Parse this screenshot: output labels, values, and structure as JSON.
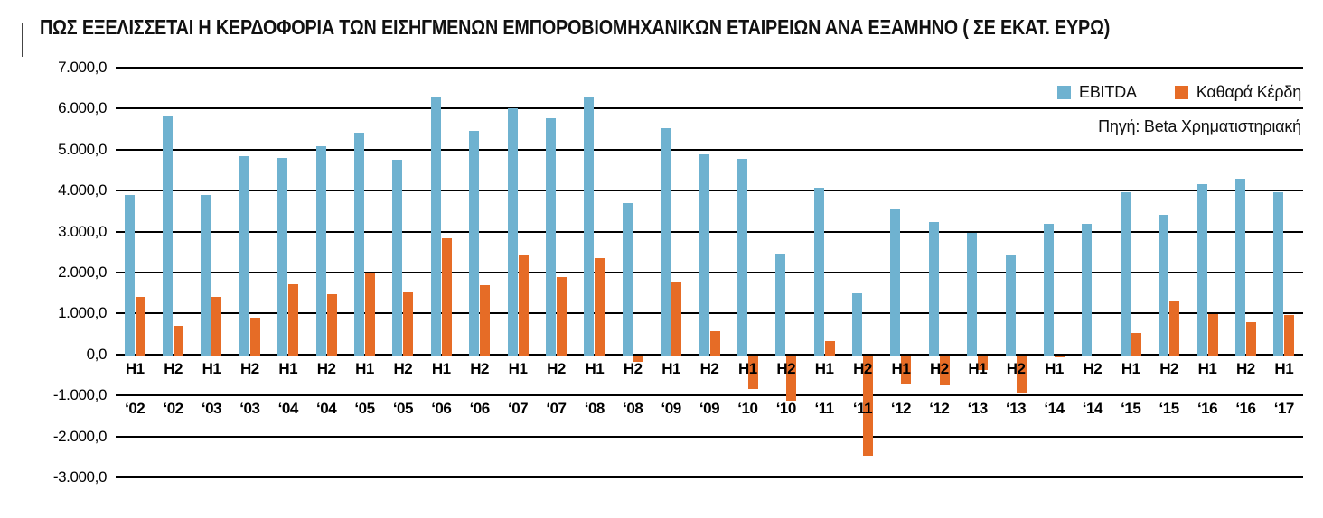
{
  "chart_data": {
    "type": "bar",
    "title": "ΠΩΣ ΕΞΕΛΙΣΣΕΤΑΙ Η ΚΕΡΔΟΦΟΡΙΑ ΤΩΝ ΕΙΣΗΓΜΕΝΩΝ ΕΜΠΟΡΟΒΙΟΜΗΧΑΝΙΚΩΝ ΕΤΑΙΡΕΙΩΝ ΑΝΑ ΕΞΑΜΗΝΟ ( ΣΕ ΕΚΑΤ. ΕΥΡΩ)",
    "source": "Πηγή: Beta Χρηματιστηριακή",
    "unit": "εκατ. ευρώ",
    "grid": true,
    "legend_position": "top-right",
    "ylim": [
      -3000,
      7000
    ],
    "y_tick_step": 1000,
    "y_tick_labels": [
      "7.000,0",
      "6.000,0",
      "5.000,0",
      "4.000,0",
      "3.000,0",
      "2.000,0",
      "1.000,0",
      "0,0",
      "-1.000,0",
      "-2.000,0",
      "-3.000,0"
    ],
    "categories": [
      {
        "half": "H1",
        "year": "‘02"
      },
      {
        "half": "H2",
        "year": "‘02"
      },
      {
        "half": "H1",
        "year": "‘03"
      },
      {
        "half": "H2",
        "year": "‘03"
      },
      {
        "half": "H1",
        "year": "‘04"
      },
      {
        "half": "H2",
        "year": "‘04"
      },
      {
        "half": "H1",
        "year": "‘05"
      },
      {
        "half": "H2",
        "year": "‘05"
      },
      {
        "half": "H1",
        "year": "‘06"
      },
      {
        "half": "H2",
        "year": "‘06"
      },
      {
        "half": "H1",
        "year": "‘07"
      },
      {
        "half": "H2",
        "year": "‘07"
      },
      {
        "half": "H1",
        "year": "‘08"
      },
      {
        "half": "H2",
        "year": "‘08"
      },
      {
        "half": "H1",
        "year": "‘09"
      },
      {
        "half": "H2",
        "year": "‘09"
      },
      {
        "half": "H1",
        "year": "‘10"
      },
      {
        "half": "H2",
        "year": "‘10"
      },
      {
        "half": "H1",
        "year": "‘11"
      },
      {
        "half": "H2",
        "year": "‘11"
      },
      {
        "half": "H1",
        "year": "‘12"
      },
      {
        "half": "H2",
        "year": "‘12"
      },
      {
        "half": "H1",
        "year": "‘13"
      },
      {
        "half": "H2",
        "year": "‘13"
      },
      {
        "half": "H1",
        "year": "‘14"
      },
      {
        "half": "H2",
        "year": "‘14"
      },
      {
        "half": "H1",
        "year": "‘15"
      },
      {
        "half": "H2",
        "year": "‘15"
      },
      {
        "half": "H1",
        "year": "‘16"
      },
      {
        "half": "H2",
        "year": "‘16"
      },
      {
        "half": "H1",
        "year": "‘17"
      }
    ],
    "series": [
      {
        "name": "EBITDA",
        "color": "#6FB2D0",
        "values": [
          3890,
          5800,
          3890,
          4850,
          4800,
          5080,
          5420,
          4750,
          6280,
          5460,
          6000,
          5760,
          6290,
          3690,
          5520,
          4880,
          4780,
          2460,
          4070,
          1490,
          3550,
          3230,
          2970,
          2420,
          3200,
          3180,
          3950,
          3400,
          4160,
          4280,
          3970
        ]
      },
      {
        "name": "Καθαρά Κέρδη",
        "color": "#E66C26",
        "values": [
          1400,
          710,
          1400,
          890,
          1720,
          1480,
          1990,
          1510,
          2830,
          1700,
          2410,
          1900,
          2360,
          -170,
          1780,
          570,
          -840,
          -1120,
          320,
          -2470,
          -720,
          -760,
          -370,
          -940,
          -60,
          -40,
          520,
          1310,
          990,
          790,
          960
        ]
      }
    ],
    "colors": {
      "gridline": "#000000",
      "text": "#111111",
      "background": "#ffffff"
    }
  }
}
